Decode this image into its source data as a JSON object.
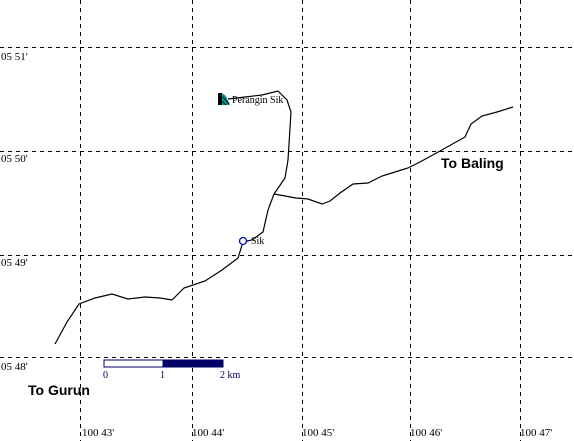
{
  "grid": {
    "lat_labels": [
      "05 51'",
      "05 50'",
      "05 49'",
      "05 48'"
    ],
    "lon_labels": [
      "100 43'",
      "100 44'",
      "100 45'",
      "100 46'",
      "100 47'"
    ]
  },
  "places": {
    "perangin_sik": "Perangin Sik",
    "sik": "Sik"
  },
  "directions": {
    "to_baling": "To Baling",
    "to_gurun": "To Gurun"
  },
  "scale_bar": {
    "labels": [
      "0",
      "1",
      "2 km"
    ],
    "fill_color": "#000066"
  },
  "colors": {
    "poi_icon": "#00a0a0",
    "town_marker": "#0000cc"
  }
}
